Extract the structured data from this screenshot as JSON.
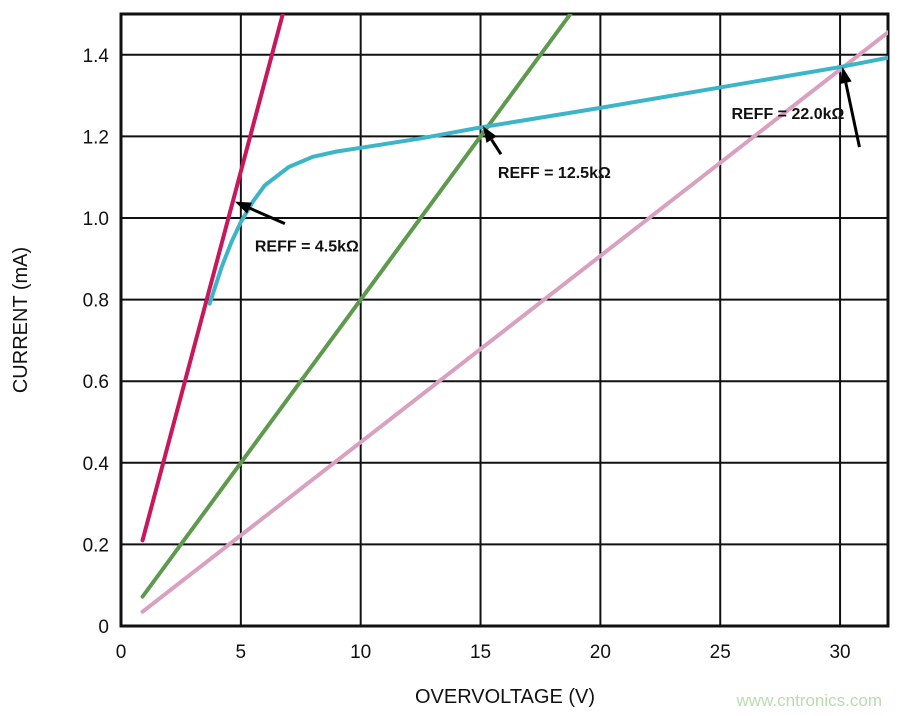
{
  "chart_data": {
    "type": "line",
    "title": "",
    "xlabel": "OVERVOLTAGE (V)",
    "ylabel": "CURRENT (mA)",
    "xlim": [
      0,
      32
    ],
    "ylim": [
      0,
      1.5
    ],
    "grid": true,
    "x_ticks": [
      "0",
      "5",
      "10",
      "15",
      "20",
      "25",
      "30"
    ],
    "y_ticks": [
      "0",
      "0.2",
      "0.4",
      "0.6",
      "0.8",
      "1.0",
      "1.2",
      "1.4"
    ],
    "series": [
      {
        "color": "#c8175a",
        "x": [
          0.9,
          6.75
        ],
        "y": [
          0.21,
          1.5
        ]
      },
      {
        "color": "#5e9a4e",
        "x": [
          0.9,
          18.75
        ],
        "y": [
          0.072,
          1.5
        ]
      },
      {
        "color": "#d9a0c0",
        "x": [
          0.9,
          32
        ],
        "y": [
          0.035,
          1.455
        ]
      },
      {
        "color": "#3db5c8",
        "x": [
          3.7,
          4.2,
          4.6,
          5.0,
          5.5,
          6.0,
          7.0,
          8.0,
          9.0,
          10.0,
          12.5,
          15.0,
          20.0,
          25.0,
          30.0,
          32.0
        ],
        "y": [
          0.79,
          0.88,
          0.94,
          0.99,
          1.04,
          1.08,
          1.125,
          1.15,
          1.163,
          1.172,
          1.195,
          1.222,
          1.27,
          1.32,
          1.37,
          1.393
        ]
      }
    ],
    "annotations": [
      {
        "text": "REFF = 4.5kΩ",
        "x": 4.75,
        "y": 1.04
      },
      {
        "text": "REFF = 12.5kΩ",
        "x": 15.1,
        "y": 1.225
      },
      {
        "text": "REFF = 22.0kΩ",
        "x": 30.1,
        "y": 1.37
      }
    ]
  },
  "watermark": "www.cntronics.com"
}
